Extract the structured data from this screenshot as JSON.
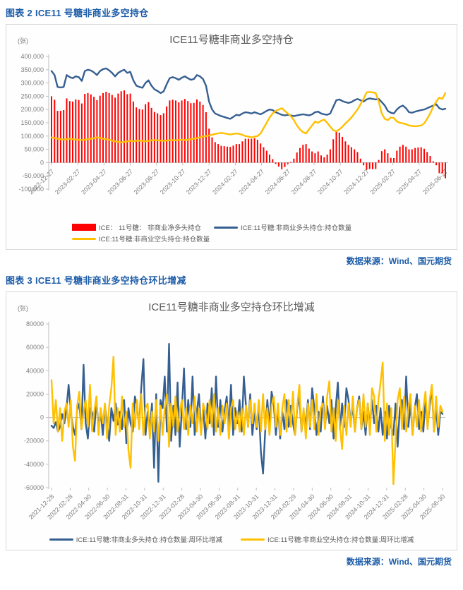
{
  "colors": {
    "header_blue": "#1C5CA8",
    "source_blue": "#1C5CA8",
    "bar_red": "#FF0000",
    "line_blue": "#365F91",
    "line_yellow": "#FFC000",
    "axis_line": "#BFBFBF",
    "axis_text": "#7F7F7F",
    "title_gray": "#595959",
    "box_border": "#D9D9D9"
  },
  "figure2": {
    "header": "图表 2 ICE11 号糖非商业多空持仓",
    "source": "数据来源：Wind、国元期货"
  },
  "figure3": {
    "header": "图表 3 ICE11 号糖非商业多空持仓环比增减",
    "source": "数据来源：Wind、国元期货"
  },
  "chart_data": [
    {
      "type": "bar",
      "subtype": "combo-bar-and-lines",
      "title": "ICE11号糖非商业多空持仓",
      "unit_label": "(张)",
      "x_frequency": "weekly",
      "x_start": "2022-12-27",
      "x_end": "2025-06-27",
      "xtick_labels": [
        "2022-12-27",
        "2023-02-27",
        "2023-04-27",
        "2023-06-27",
        "2023-08-27",
        "2023-10-27",
        "2023-12-27",
        "2024-02-27",
        "2024-04-27",
        "2024-06-27",
        "2024-08-27",
        "2024-10-27",
        "2024-12-27",
        "2025-02-27",
        "2025-04-27",
        "2025-06-27"
      ],
      "ylim": [
        -100000,
        400000
      ],
      "ytick_values": [
        400000,
        350000,
        300000,
        250000,
        200000,
        150000,
        100000,
        50000,
        0,
        -50000,
        -100000
      ],
      "ytick_labels": [
        "400,000",
        "350,000",
        "300,000",
        "250,000",
        "200,000",
        "150,000",
        "100,000",
        "50,000",
        "0",
        "-50,000",
        "-100,000"
      ],
      "grid": false,
      "legend_position": "bottom",
      "series": [
        {
          "name": "ICE： 11号糖： 非商业净多头持仓",
          "type": "bar",
          "color": "#FF0000",
          "values": [
            250000.0,
            237000.0,
            195000.0,
            195000.0,
            198000.0,
            242000.0,
            232000.0,
            230000.0,
            238000.0,
            236000.0,
            223000.0,
            259000.0,
            262000.0,
            257000.0,
            248000.0,
            235000.0,
            252000.0,
            262000.0,
            267000.0,
            262000.0,
            255000.0,
            245000.0,
            260000.0,
            269000.0,
            272000.0,
            258000.0,
            260000.0,
            230000.0,
            208000.0,
            202000.0,
            200000.0,
            220000.0,
            228000.0,
            206000.0,
            191000.0,
            186000.0,
            179000.0,
            186000.0,
            212000.0,
            234000.0,
            237000.0,
            234000.0,
            227000.0,
            234000.0,
            240000.0,
            232000.0,
            224000.0,
            225000.0,
            238000.0,
            230000.0,
            217000.0,
            190000.0,
            128000.0,
            95000.0,
            77000.0,
            70000.0,
            63000.0,
            62000.0,
            60000.0,
            59000.0,
            64000.0,
            70000.0,
            70000.0,
            80000.0,
            90000.0,
            90000.0,
            90000.0,
            92000.0,
            86000.0,
            72000.0,
            58000.0,
            45000.0,
            30000.0,
            13000.0,
            -5000.0,
            -15000.0,
            -25000.0,
            -17000.0,
            -5000.0,
            3000.0,
            15000.0,
            38000.0,
            55000.0,
            67000.0,
            70000.0,
            53000.0,
            42000.0,
            35000.0,
            42000.0,
            27000.0,
            20000.0,
            30000.0,
            50000.0,
            88000.0,
            117000.0,
            113000.0,
            97000.0,
            80000.0,
            67000.0,
            58000.0,
            50000.0,
            40000.0,
            15000.0,
            -10000.0,
            -27000.0,
            -24000.0,
            -25000.0,
            -24000.0,
            10000.0,
            43000.0,
            50000.0,
            35000.0,
            18000.0,
            17000.0,
            45000.0,
            60000.0,
            67000.0,
            60000.0,
            50000.0,
            50000.0,
            55000.0,
            57000.0,
            58000.0,
            52000.0,
            40000.0,
            25000.0,
            5000.0,
            -10000.0,
            -40000.0,
            -40000.0,
            -59000.0
          ]
        },
        {
          "name": "ICE:11号糖:非商业多头持仓:持仓数量",
          "type": "line",
          "color": "#365F91",
          "values": [
            345000.0,
            330000.0,
            285000.0,
            283000.0,
            285000.0,
            330000.0,
            322000.0,
            318000.0,
            325000.0,
            322000.0,
            308000.0,
            345000.0,
            350000.0,
            347000.0,
            340000.0,
            330000.0,
            345000.0,
            352000.0,
            355000.0,
            348000.0,
            338000.0,
            325000.0,
            338000.0,
            345000.0,
            350000.0,
            338000.0,
            342000.0,
            310000.0,
            290000.0,
            285000.0,
            282000.0,
            300000.0,
            310000.0,
            290000.0,
            276000.0,
            270000.0,
            262000.0,
            268000.0,
            295000.0,
            318000.0,
            322000.0,
            318000.0,
            312000.0,
            320000.0,
            325000.0,
            318000.0,
            312000.0,
            315000.0,
            330000.0,
            325000.0,
            315000.0,
            290000.0,
            230000.0,
            200000.0,
            185000.0,
            180000.0,
            175000.0,
            172000.0,
            168000.0,
            165000.0,
            172000.0,
            180000.0,
            178000.0,
            185000.0,
            190000.0,
            188000.0,
            185000.0,
            190000.0,
            186000.0,
            182000.0,
            188000.0,
            195000.0,
            200000.0,
            198000.0,
            190000.0,
            185000.0,
            180000.0,
            178000.0,
            180000.0,
            178000.0,
            175000.0,
            178000.0,
            180000.0,
            182000.0,
            180000.0,
            178000.0,
            182000.0,
            190000.0,
            192000.0,
            185000.0,
            182000.0,
            180000.0,
            185000.0,
            210000.0,
            235000.0,
            238000.0,
            232000.0,
            228000.0,
            225000.0,
            228000.0,
            235000.0,
            240000.0,
            235000.0,
            230000.0,
            238000.0,
            242000.0,
            240000.0,
            238000.0,
            240000.0,
            228000.0,
            215000.0,
            195000.0,
            188000.0,
            185000.0,
            200000.0,
            210000.0,
            215000.0,
            205000.0,
            190000.0,
            188000.0,
            192000.0,
            195000.0,
            198000.0,
            200000.0,
            205000.0,
            210000.0,
            215000.0,
            220000.0,
            205000.0,
            200000.0,
            203000.0
          ]
        },
        {
          "name": "ICE:11号糖:非商业空头持仓:持仓数量",
          "type": "line",
          "color": "#FFC000",
          "values": [
            95000.0,
            93000.0,
            90000.0,
            88000.0,
            87000.0,
            88000.0,
            90000.0,
            88000.0,
            87000.0,
            86000.0,
            85000.0,
            86000.0,
            88000.0,
            90000.0,
            92000.0,
            95000.0,
            93000.0,
            90000.0,
            88000.0,
            86000.0,
            83000.0,
            80000.0,
            78000.0,
            76000.0,
            78000.0,
            80000.0,
            82000.0,
            80000.0,
            82000.0,
            83000.0,
            82000.0,
            80000.0,
            82000.0,
            84000.0,
            85000.0,
            84000.0,
            83000.0,
            82000.0,
            83000.0,
            84000.0,
            85000.0,
            84000.0,
            85000.0,
            86000.0,
            85000.0,
            86000.0,
            88000.0,
            90000.0,
            92000.0,
            95000.0,
            98000.0,
            100000.0,
            102000.0,
            105000.0,
            108000.0,
            110000.0,
            112000.0,
            110000.0,
            108000.0,
            106000.0,
            108000.0,
            110000.0,
            108000.0,
            105000.0,
            100000.0,
            98000.0,
            95000.0,
            98000.0,
            100000.0,
            110000.0,
            130000.0,
            150000.0,
            170000.0,
            185000.0,
            195000.0,
            200000.0,
            205000.0,
            195000.0,
            185000.0,
            175000.0,
            160000.0,
            140000.0,
            125000.0,
            115000.0,
            110000.0,
            125000.0,
            140000.0,
            155000.0,
            150000.0,
            158000.0,
            162000.0,
            150000.0,
            135000.0,
            122000.0,
            118000.0,
            125000.0,
            135000.0,
            148000.0,
            158000.0,
            170000.0,
            185000.0,
            200000.0,
            220000.0,
            240000.0,
            265000.0,
            266000.0,
            265000.0,
            262000.0,
            230000.0,
            185000.0,
            165000.0,
            160000.0,
            170000.0,
            168000.0,
            155000.0,
            150000.0,
            148000.0,
            145000.0,
            140000.0,
            138000.0,
            137000.0,
            138000.0,
            140000.0,
            148000.0,
            165000.0,
            185000.0,
            210000.0,
            230000.0,
            245000.0,
            240000.0,
            262000.0
          ]
        }
      ]
    },
    {
      "type": "line",
      "subtype": "two-line",
      "title": "ICE11号糖非商业多空持仓环比增减",
      "unit_label": "(张)",
      "x_frequency": "weekly",
      "x_start": "2021-12-28",
      "x_end": "2025-06-30",
      "xtick_labels": [
        "2021-12-28",
        "2022-02-28",
        "2022-04-30",
        "2022-06-30",
        "2022-08-31",
        "2022-10-31",
        "2022-12-31",
        "2023-02-28",
        "2023-04-30",
        "2023-06-30",
        "2023-08-31",
        "2023-10-31",
        "2023-12-31",
        "2024-02-29",
        "2024-04-30",
        "2024-06-30",
        "2024-08-31",
        "2024-10-31",
        "2024-12-31",
        "2025-02-28",
        "2025-04-30",
        "2025-06-30"
      ],
      "ylim": [
        -60000,
        80000
      ],
      "ytick_values": [
        80000,
        60000,
        40000,
        20000,
        0,
        -20000,
        -40000,
        -60000
      ],
      "ytick_labels": [
        "80000",
        "60000",
        "40000",
        "20000",
        "0",
        "-20000",
        "-40000",
        "-60000"
      ],
      "grid": false,
      "legend_position": "bottom",
      "series": [
        {
          "name": "ICE:11号糖:非商业多头持仓:持仓数量:周环比增减",
          "type": "line",
          "color": "#365F91",
          "values": [
            -7000.0,
            -9000.0,
            -4000.0,
            -12000.0,
            -8000.0,
            3000.0,
            -5000.0,
            8000.0,
            28000.0,
            5000.0,
            -8000.0,
            -15000.0,
            6000.0,
            12000.0,
            -10000.0,
            45000.0,
            -5000.0,
            -18000.0,
            8000.0,
            4000.0,
            -12000.0,
            15000.0,
            -8000.0,
            5000.0,
            -15000.0,
            10000.0,
            -5000.0,
            -20000.0,
            8000.0,
            -3000.0,
            12000.0,
            -6000.0,
            5000.0,
            -10000.0,
            15000.0,
            -22000.0,
            8000.0,
            -5000.0,
            -12000.0,
            18000.0,
            10000.0,
            -8000.0,
            25000.0,
            50000.0,
            -15000.0,
            5000.0,
            -10000.0,
            12000.0,
            -43000.0,
            20000.0,
            -55000.0,
            15000.0,
            8000.0,
            35000.0,
            -12000.0,
            63000.0,
            -20000.0,
            10000.0,
            -15000.0,
            30000.0,
            -25000.0,
            8000.0,
            42000.0,
            -10000.0,
            15000.0,
            -8000.0,
            35000.0,
            -15000.0,
            5000.0,
            20000.0,
            -12000.0,
            8000.0,
            -18000.0,
            12000.0,
            -5000.0,
            25000.0,
            -15000.0,
            35000.0,
            -8000.0,
            15000.0,
            -12000.0,
            5000.0,
            18000.0,
            -10000.0,
            28000.0,
            -15000.0,
            8000.0,
            -5000.0,
            15000.0,
            -12000.0,
            35000.0,
            10000.0,
            -8000.0,
            20000.0,
            -15000.0,
            5000.0,
            -10000.0,
            8000.0,
            -30000.0,
            -48000.0,
            -12000.0,
            15000.0,
            -8000.0,
            22000.0,
            12000.0,
            -15000.0,
            8000.0,
            -18000.0,
            5000.0,
            -10000.0,
            15000.0,
            -8000.0,
            10000.0,
            -5000.0,
            -15000.0,
            8000.0,
            18000.0,
            -12000.0,
            5000.0,
            -8000.0,
            15000.0,
            -10000.0,
            25000.0,
            8000.0,
            -15000.0,
            5000.0,
            -12000.0,
            18000.0,
            -8000.0,
            10000.0,
            -5000.0,
            15000.0,
            -18000.0,
            8000.0,
            30000.0,
            -10000.0,
            12000.0,
            -8000.0,
            25000.0,
            15000.0,
            -5000.0,
            10000.0,
            -12000.0,
            8000.0,
            18000.0,
            -10000.0,
            5000.0,
            -15000.0,
            12000.0,
            -8000.0,
            15000.0,
            -5000.0,
            10000.0,
            -12000.0,
            8000.0,
            -15000.0,
            5000.0,
            -18000.0,
            10000.0,
            -8000.0,
            -15000.0,
            12000.0,
            -25000.0,
            8000.0,
            15000.0,
            -10000.0,
            35000.0,
            -8000.0,
            12000.0,
            -15000.0,
            8000.0,
            20000.0,
            -10000.0,
            5000.0,
            -12000.0,
            15000.0,
            -8000.0,
            10000.0,
            25000.0,
            -12000.0,
            8000.0,
            -15000.0,
            5000.0,
            3000.0
          ]
        },
        {
          "name": "ICE:11号糖:非商业空头持仓:持仓数量:周环比增减",
          "type": "line",
          "color": "#FFC000",
          "values": [
            32000.0,
            -5000.0,
            15000.0,
            -12000.0,
            8000.0,
            -20000.0,
            5000.0,
            12000.0,
            -8000.0,
            15000.0,
            -25000.0,
            -37000.0,
            10000.0,
            22000.0,
            -10000.0,
            5000.0,
            15000.0,
            -8000.0,
            28000.0,
            -12000.0,
            5000.0,
            18000.0,
            -15000.0,
            8000.0,
            -5000.0,
            12000.0,
            -18000.0,
            10000.0,
            25000.0,
            52000.0,
            -15000.0,
            8000.0,
            -12000.0,
            18000.0,
            -8000.0,
            5000.0,
            -28000.0,
            -43000.0,
            12000.0,
            -8000.0,
            15000.0,
            -10000.0,
            20000.0,
            -15000.0,
            8000.0,
            12000.0,
            -18000.0,
            5000.0,
            -12000.0,
            15000.0,
            -20000.0,
            10000.0,
            -15000.0,
            8000.0,
            20000.0,
            -25000.0,
            12000.0,
            -8000.0,
            18000.0,
            -12000.0,
            5000.0,
            15000.0,
            -10000.0,
            8000.0,
            -15000.0,
            10000.0,
            -5000.0,
            18000.0,
            -12000.0,
            8000.0,
            -15000.0,
            12000.0,
            5000.0,
            -10000.0,
            15000.0,
            -8000.0,
            20000.0,
            -12000.0,
            8000.0,
            -15000.0,
            10000.0,
            -5000.0,
            12000.0,
            -18000.0,
            8000.0,
            15000.0,
            -10000.0,
            5000.0,
            -12000.0,
            8000.0,
            -15000.0,
            10000.0,
            -8000.0,
            15000.0,
            -5000.0,
            12000.0,
            -8000.0,
            15000.0,
            -12000.0,
            20000.0,
            -10000.0,
            8000.0,
            -15000.0,
            10000.0,
            18000.0,
            -8000.0,
            12000.0,
            -15000.0,
            8000.0,
            20000.0,
            -12000.0,
            15000.0,
            -8000.0,
            22000.0,
            -15000.0,
            10000.0,
            28000.0,
            -12000.0,
            8000.0,
            -18000.0,
            12000.0,
            -8000.0,
            15000.0,
            -10000.0,
            20000.0,
            -15000.0,
            8000.0,
            12000.0,
            -10000.0,
            18000.0,
            31000.0,
            -12000.0,
            8000.0,
            -20000.0,
            15000.0,
            -8000.0,
            -27000.0,
            10000.0,
            -15000.0,
            12000.0,
            -8000.0,
            18000.0,
            -12000.0,
            8000.0,
            15000.0,
            -10000.0,
            20000.0,
            -8000.0,
            12000.0,
            -15000.0,
            25000.0,
            18000.0,
            -12000.0,
            15000.0,
            30000.0,
            47000.0,
            -20000.0,
            12000.0,
            -15000.0,
            8000.0,
            -57000.0,
            -20000.0,
            15000.0,
            25000.0,
            -10000.0,
            18000.0,
            -12000.0,
            8000.0,
            20000.0,
            -15000.0,
            10000.0,
            -8000.0,
            15000.0,
            -12000.0,
            8000.0,
            22000.0,
            -10000.0,
            15000.0,
            28000.0,
            -12000.0,
            18000.0,
            -8000.0,
            10000.0,
            5000.0
          ]
        }
      ]
    }
  ]
}
